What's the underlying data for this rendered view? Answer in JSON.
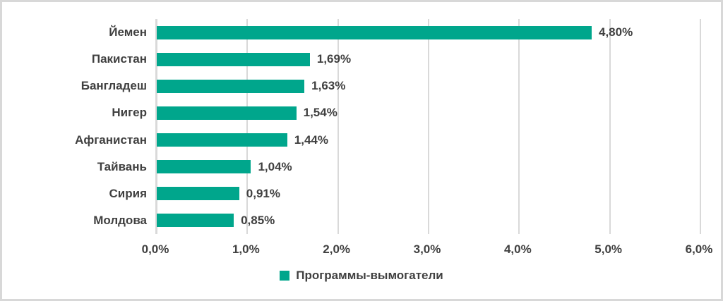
{
  "window": {
    "background_color": "#ffffff",
    "border_color": "#d8d8d8"
  },
  "chart_data": {
    "type": "bar",
    "orientation": "horizontal",
    "title": "",
    "xlabel": "",
    "ylabel": "",
    "categories": [
      "Йемен",
      "Пакистан",
      "Бангладеш",
      "Нигер",
      "Афганистан",
      "Тайвань",
      "Сирия",
      "Молдова"
    ],
    "series": [
      {
        "name": "Программы-вымогатели",
        "values": [
          4.8,
          1.69,
          1.63,
          1.54,
          1.44,
          1.04,
          0.91,
          0.85
        ],
        "data_labels": [
          "4,80%",
          "1,69%",
          "1,63%",
          "1,54%",
          "1,44%",
          "1,04%",
          "0,91%",
          "0,85%"
        ]
      }
    ],
    "x_axis": {
      "min": 0,
      "max": 6,
      "tick_labels": [
        "0,0%",
        "1,0%",
        "2,0%",
        "3,0%",
        "4,0%",
        "5,0%",
        "6,0%"
      ]
    },
    "grid": true,
    "legend_position": "bottom",
    "legend": {
      "label": "Программы-вымогатели"
    },
    "colors": {
      "bar": "#00a68c",
      "gridline": "#d9d9d9",
      "axis_line": "#d9d9d9",
      "text": "#404040"
    }
  }
}
